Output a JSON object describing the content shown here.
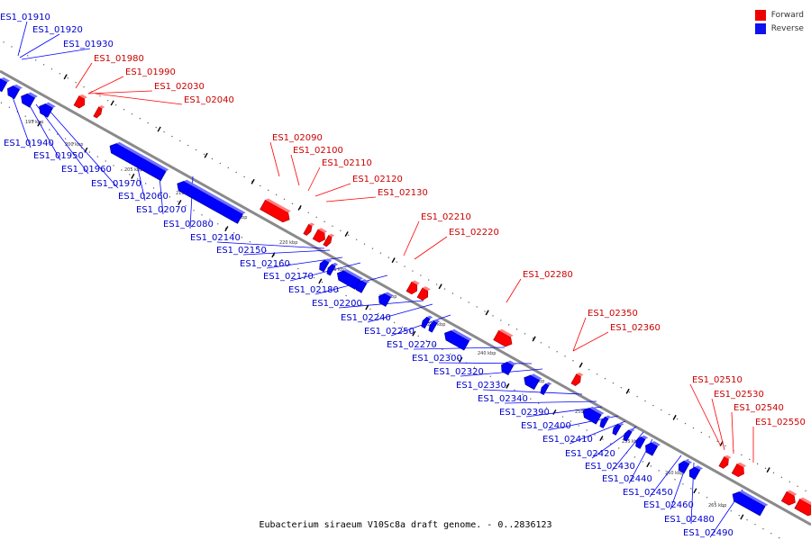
{
  "caption": "Eubacterium siraeum V10Sc8a draft genome. - 0..2836123",
  "colors": {
    "forward": "#ff0000",
    "forward_label": "#cc0000",
    "reverse": "#0000ff",
    "reverse_label": "#0000cc",
    "backbone": "#8a8a8a"
  },
  "legend": {
    "forward": {
      "label": "Forward",
      "color": "#ee0000"
    },
    "reverse": {
      "label": "Reverse",
      "color": "#1111ee"
    }
  },
  "ticks": [
    "195 kbp",
    "200 kbp",
    "205 kbp",
    "210 kbp",
    "215 kbp",
    "220 kbp",
    "225 kbp",
    "230 kbp",
    "235 kbp",
    "240 kbp",
    "245 kbp",
    "250 kbp",
    "255 kbp",
    "260 kbp",
    "265 kbp"
  ],
  "genes": {
    "forward": [
      "ES1_01980",
      "ES1_01990",
      "ES1_02030",
      "ES1_02040",
      "ES1_02090",
      "ES1_02100",
      "ES1_02110",
      "ES1_02120",
      "ES1_02130",
      "ES1_02210",
      "ES1_02220",
      "ES1_02280",
      "ES1_02350",
      "ES1_02360",
      "ES1_02510",
      "ES1_02530",
      "ES1_02540",
      "ES1_02550"
    ],
    "reverse": [
      "ES1_01910",
      "ES1_01920",
      "ES1_01930",
      "ES1_01940",
      "ES1_01950",
      "ES1_01960",
      "ES1_01970",
      "ES1_02060",
      "ES1_02070",
      "ES1_02080",
      "ES1_02140",
      "ES1_02150",
      "ES1_02160",
      "ES1_02170",
      "ES1_02180",
      "ES1_02200",
      "ES1_02240",
      "ES1_02250",
      "ES1_02270",
      "ES1_02300",
      "ES1_02320",
      "ES1_02330",
      "ES1_02340",
      "ES1_02390",
      "ES1_02400",
      "ES1_02410",
      "ES1_02420",
      "ES1_02430",
      "ES1_02440",
      "ES1_02450",
      "ES1_02460",
      "ES1_02480",
      "ES1_02490"
    ]
  }
}
